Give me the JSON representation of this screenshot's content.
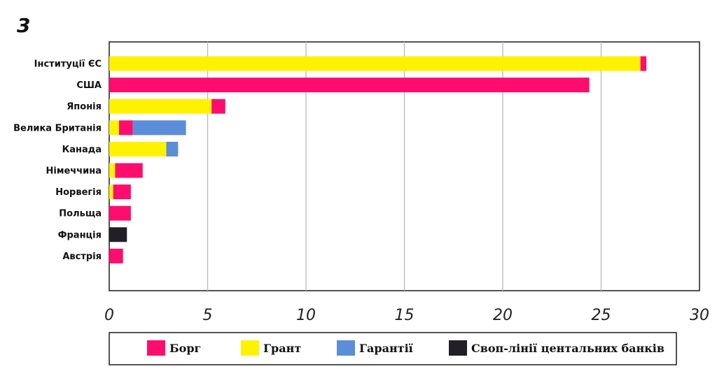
{
  "corner_mark": "3",
  "chart_data": {
    "type": "bar",
    "orientation": "horizontal",
    "stacked": true,
    "title": "",
    "xlabel": "",
    "ylabel": "",
    "xlim": [
      0,
      30
    ],
    "xticks": [
      "0",
      "5",
      "10",
      "15",
      "20",
      "25",
      "30"
    ],
    "grid": true,
    "legend_position": "bottom",
    "categories": [
      "Інституції ЄС",
      "США",
      "Японія",
      "Велика Британія",
      "Канада",
      "Німеччина",
      "Норвегія",
      "Польща",
      "Франція",
      "Австрія"
    ],
    "series": [
      {
        "name": "Грант",
        "color": "#fff200",
        "values": [
          27.0,
          0,
          5.2,
          0.5,
          2.9,
          0.3,
          0.2,
          0,
          0,
          0
        ]
      },
      {
        "name": "Борг",
        "color": "#ff0d6e",
        "values": [
          0.3,
          24.4,
          0.7,
          0.7,
          0,
          1.4,
          0.9,
          1.1,
          0,
          0.7
        ]
      },
      {
        "name": "Гарантії",
        "color": "#5b8dd9",
        "values": [
          0,
          0,
          0,
          2.7,
          0.6,
          0,
          0,
          0,
          0,
          0
        ]
      },
      {
        "name": "Своп-лінії центальних банків",
        "color": "#231f26",
        "values": [
          0,
          0,
          0,
          0,
          0,
          0,
          0,
          0,
          0.9,
          0
        ]
      }
    ],
    "legend_order": [
      "Борг",
      "Грант",
      "Гарантії",
      "Своп-лінії центальних банків"
    ]
  }
}
